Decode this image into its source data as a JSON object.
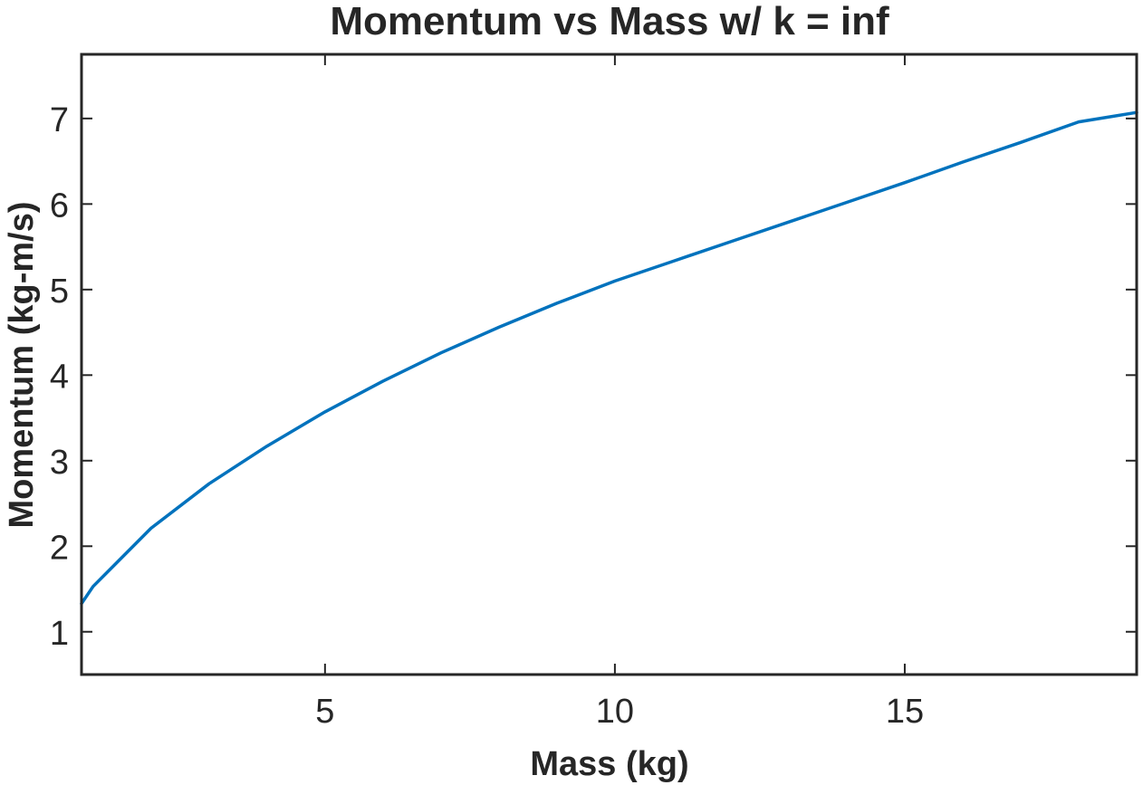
{
  "chart_data": {
    "type": "line",
    "title": "Momentum vs Mass w/ k = inf",
    "xlabel": "Mass (kg)",
    "ylabel": "Momentum (kg-m/s)",
    "xlim": [
      0.8,
      19
    ],
    "ylim": [
      0.5,
      7.75
    ],
    "xticks": [
      5,
      10,
      15
    ],
    "yticks": [
      1,
      2,
      3,
      4,
      5,
      6,
      7
    ],
    "grid": false,
    "series": [
      {
        "color": "#0072BD",
        "x": [
          0.8,
          1,
          2,
          3,
          4,
          5,
          6,
          7,
          8,
          9,
          10,
          11,
          12,
          13,
          14,
          15,
          16,
          17,
          18,
          19
        ],
        "y": [
          1.33,
          1.53,
          2.21,
          2.73,
          3.17,
          3.57,
          3.93,
          4.26,
          4.56,
          4.84,
          5.1,
          5.33,
          5.56,
          5.79,
          6.02,
          6.25,
          6.49,
          6.72,
          6.96,
          7.07
        ]
      }
    ]
  }
}
